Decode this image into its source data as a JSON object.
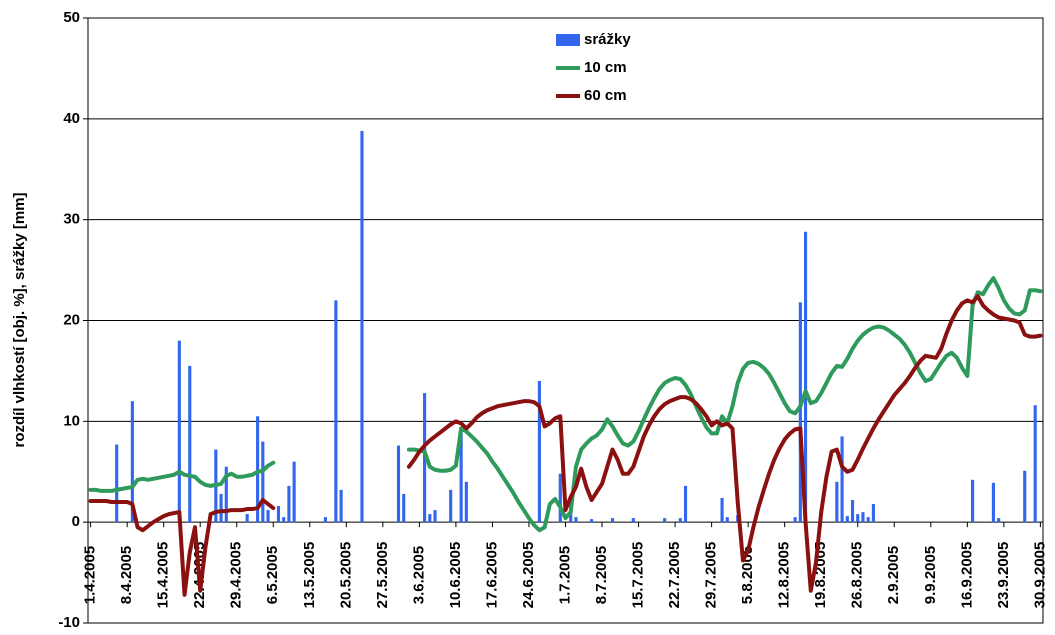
{
  "chart_data": {
    "type": "combo",
    "y_label": "rozdíl vlhkostí [obj. %], srážky [mm]",
    "ylim": [
      -10,
      50
    ],
    "yticks": [
      -10,
      0,
      10,
      20,
      30,
      40,
      50
    ],
    "grid": true,
    "categories": [
      "1.4.2005",
      null,
      null,
      null,
      null,
      null,
      null,
      "8.4.2005",
      null,
      null,
      null,
      null,
      null,
      null,
      "15.4.2005",
      null,
      null,
      null,
      null,
      null,
      null,
      "22.4.2005",
      null,
      null,
      null,
      null,
      null,
      null,
      "29.4.2005",
      null,
      null,
      null,
      null,
      null,
      null,
      "6.5.2005",
      null,
      null,
      null,
      null,
      null,
      null,
      "13.5.2005",
      null,
      null,
      null,
      null,
      null,
      null,
      "20.5.2005",
      null,
      null,
      null,
      null,
      null,
      null,
      "27.5.2005",
      null,
      null,
      null,
      null,
      null,
      null,
      "3.6.2005",
      null,
      null,
      null,
      null,
      null,
      null,
      "10.6.2005",
      null,
      null,
      null,
      null,
      null,
      null,
      "17.6.2005",
      null,
      null,
      null,
      null,
      null,
      null,
      "24.6.2005",
      null,
      null,
      null,
      null,
      null,
      null,
      "1.7.2005",
      null,
      null,
      null,
      null,
      null,
      null,
      "8.7.2005",
      null,
      null,
      null,
      null,
      null,
      null,
      "15.7.2005",
      null,
      null,
      null,
      null,
      null,
      null,
      "22.7.2005",
      null,
      null,
      null,
      null,
      null,
      null,
      "29.7.2005",
      null,
      null,
      null,
      null,
      null,
      null,
      "5.8.2005",
      null,
      null,
      null,
      null,
      null,
      null,
      "12.8.2005",
      null,
      null,
      null,
      null,
      null,
      null,
      "19.8.2005",
      null,
      null,
      null,
      null,
      null,
      null,
      "26.8.2005",
      null,
      null,
      null,
      null,
      null,
      null,
      "2.9.2005",
      null,
      null,
      null,
      null,
      null,
      null,
      "9.9.2005",
      null,
      null,
      null,
      null,
      null,
      null,
      "16.9.2005",
      null,
      null,
      null,
      null,
      null,
      null,
      "23.9.2005",
      null,
      null,
      null,
      null,
      null,
      null,
      "30.9.2005"
    ],
    "series": [
      {
        "name": "srážky",
        "type": "bar",
        "color": "#3366ee",
        "values": [
          0,
          0,
          0,
          0,
          0,
          7.7,
          0,
          0,
          12,
          0,
          0,
          0,
          0,
          0,
          0,
          0,
          0,
          18,
          0,
          15.5,
          0,
          0,
          0,
          0,
          7.2,
          2.8,
          5.5,
          0,
          0,
          0,
          0.8,
          0,
          10.5,
          8,
          1.2,
          0,
          1.6,
          0.5,
          3.6,
          6,
          0,
          0,
          0,
          0,
          0,
          0.5,
          0,
          22,
          3.2,
          0,
          0,
          0,
          38.8,
          0,
          0,
          0,
          0,
          0,
          0,
          7.6,
          2.8,
          0,
          0,
          0,
          12.8,
          0.8,
          1.2,
          0,
          0,
          3.2,
          0,
          9,
          4,
          0,
          0,
          0,
          0,
          0,
          0,
          0,
          0,
          0,
          0,
          0,
          0,
          0,
          14,
          0,
          0,
          0,
          4.8,
          0,
          2,
          0.5,
          0,
          0,
          0.3,
          0,
          0,
          0,
          0.4,
          0,
          0,
          0,
          0.4,
          0,
          0,
          0,
          0,
          0,
          0.4,
          0,
          0,
          0.4,
          3.6,
          0,
          0,
          0,
          0,
          0,
          0,
          2.4,
          0.5,
          0,
          0.7,
          0,
          0,
          0,
          0,
          0,
          0,
          0,
          0,
          0,
          0,
          0.5,
          21.8,
          28.8,
          0,
          0,
          0,
          0,
          0,
          4,
          8.5,
          0.6,
          2.2,
          0.8,
          1,
          0.5,
          1.8,
          0,
          0,
          0,
          0,
          0,
          0,
          0,
          0,
          0,
          0,
          0,
          0,
          0,
          0,
          0,
          0,
          0,
          0,
          4.2,
          0,
          0,
          0,
          3.9,
          0.4,
          0,
          0,
          0,
          0,
          5.1,
          0,
          11.6,
          0
        ]
      },
      {
        "name": "10 cm",
        "type": "line",
        "color": "#2e9a5c",
        "values": [
          3.2,
          3.2,
          3.1,
          3.1,
          3.1,
          3.2,
          3.3,
          3.4,
          3.5,
          4.2,
          4.3,
          4.2,
          4.3,
          4.4,
          4.5,
          4.6,
          4.7,
          5.0,
          4.7,
          4.6,
          4.5,
          4.0,
          3.7,
          3.6,
          3.7,
          3.8,
          4.6,
          4.8,
          4.5,
          4.5,
          4.6,
          4.7,
          5.0,
          5.1,
          5.6,
          5.9,
          null,
          null,
          null,
          null,
          null,
          null,
          null,
          null,
          null,
          null,
          null,
          null,
          null,
          null,
          null,
          null,
          null,
          null,
          null,
          null,
          null,
          null,
          null,
          null,
          null,
          7.2,
          7.2,
          7.1,
          7.0,
          5.5,
          5.2,
          5.1,
          5.1,
          5.2,
          5.6,
          9.3,
          9.0,
          8.5,
          8.0,
          7.4,
          6.8,
          6.0,
          5.3,
          4.5,
          3.7,
          2.9,
          2.0,
          1.2,
          0.4,
          -0.3,
          -0.8,
          -0.5,
          1.8,
          2.3,
          1.5,
          0.4,
          1.0,
          5.5,
          7.2,
          7.8,
          8.3,
          8.6,
          9.2,
          10.2,
          9.5,
          8.6,
          7.8,
          7.6,
          8.0,
          9.0,
          10.2,
          11.3,
          12.3,
          13.2,
          13.8,
          14.1,
          14.3,
          14.2,
          13.6,
          12.7,
          11.5,
          10.4,
          9.4,
          8.8,
          8.8,
          10.5,
          9.8,
          11.5,
          13.8,
          15.2,
          15.8,
          15.9,
          15.7,
          15.3,
          14.7,
          13.8,
          12.8,
          11.8,
          11.0,
          10.8,
          11.5,
          13.0,
          11.8,
          12.0,
          12.8,
          13.8,
          14.8,
          15.5,
          15.4,
          16.2,
          17.2,
          18.0,
          18.6,
          19.0,
          19.3,
          19.4,
          19.3,
          19.0,
          18.6,
          18.2,
          17.6,
          16.8,
          15.8,
          14.8,
          14.0,
          14.2,
          15.0,
          15.8,
          16.5,
          16.8,
          16.3,
          15.3,
          14.5,
          21.5,
          22.8,
          22.6,
          23.5,
          24.2,
          23.2,
          22.0,
          21.2,
          20.7,
          20.6,
          21.0,
          23.0,
          23.0,
          22.9
        ]
      },
      {
        "name": "60 cm",
        "type": "line",
        "color": "#8b1010",
        "values": [
          2.1,
          2.1,
          2.1,
          2.1,
          2.0,
          2.0,
          2.0,
          2.0,
          1.8,
          -0.5,
          -0.8,
          -0.4,
          0.0,
          0.3,
          0.6,
          0.8,
          0.9,
          1.0,
          -7.2,
          -3.0,
          -0.5,
          -6.8,
          -2.5,
          0.8,
          1.0,
          1.1,
          1.1,
          1.2,
          1.2,
          1.2,
          1.3,
          1.3,
          1.4,
          2.2,
          1.8,
          1.4,
          null,
          null,
          null,
          null,
          null,
          null,
          null,
          null,
          null,
          null,
          null,
          null,
          null,
          null,
          null,
          null,
          null,
          null,
          null,
          null,
          null,
          null,
          null,
          null,
          null,
          5.5,
          6.2,
          7.0,
          7.6,
          8.1,
          8.5,
          8.9,
          9.3,
          9.7,
          10.0,
          9.8,
          9.3,
          9.8,
          10.4,
          10.8,
          11.1,
          11.3,
          11.5,
          11.6,
          11.7,
          11.8,
          11.9,
          12.0,
          12.0,
          11.9,
          11.5,
          9.5,
          9.8,
          10.3,
          10.5,
          1.2,
          2.5,
          3.5,
          5.3,
          3.5,
          2.2,
          3.0,
          3.8,
          5.5,
          7.2,
          6.2,
          4.8,
          4.8,
          5.5,
          7.0,
          8.5,
          9.6,
          10.5,
          11.2,
          11.7,
          12.0,
          12.2,
          12.4,
          12.4,
          12.2,
          11.8,
          11.2,
          10.5,
          9.6,
          10.0,
          9.6,
          9.8,
          9.3,
          2.0,
          -3.8,
          -2.8,
          -0.5,
          1.5,
          3.2,
          4.8,
          6.2,
          7.3,
          8.2,
          8.8,
          9.2,
          9.3,
          0.0,
          -6.8,
          -4.0,
          1.0,
          4.5,
          7.0,
          7.2,
          5.5,
          5.0,
          5.2,
          6.2,
          7.3,
          8.3,
          9.3,
          10.2,
          11.0,
          11.8,
          12.6,
          13.2,
          13.8,
          14.5,
          15.3,
          16.0,
          16.5,
          16.4,
          16.3,
          17.2,
          18.7,
          20.0,
          21.0,
          21.7,
          22.0,
          21.8,
          22.4,
          21.5,
          21.0,
          20.6,
          20.3,
          20.2,
          20.1,
          20.0,
          19.8,
          18.6,
          18.4,
          18.4,
          18.5
        ]
      }
    ]
  }
}
